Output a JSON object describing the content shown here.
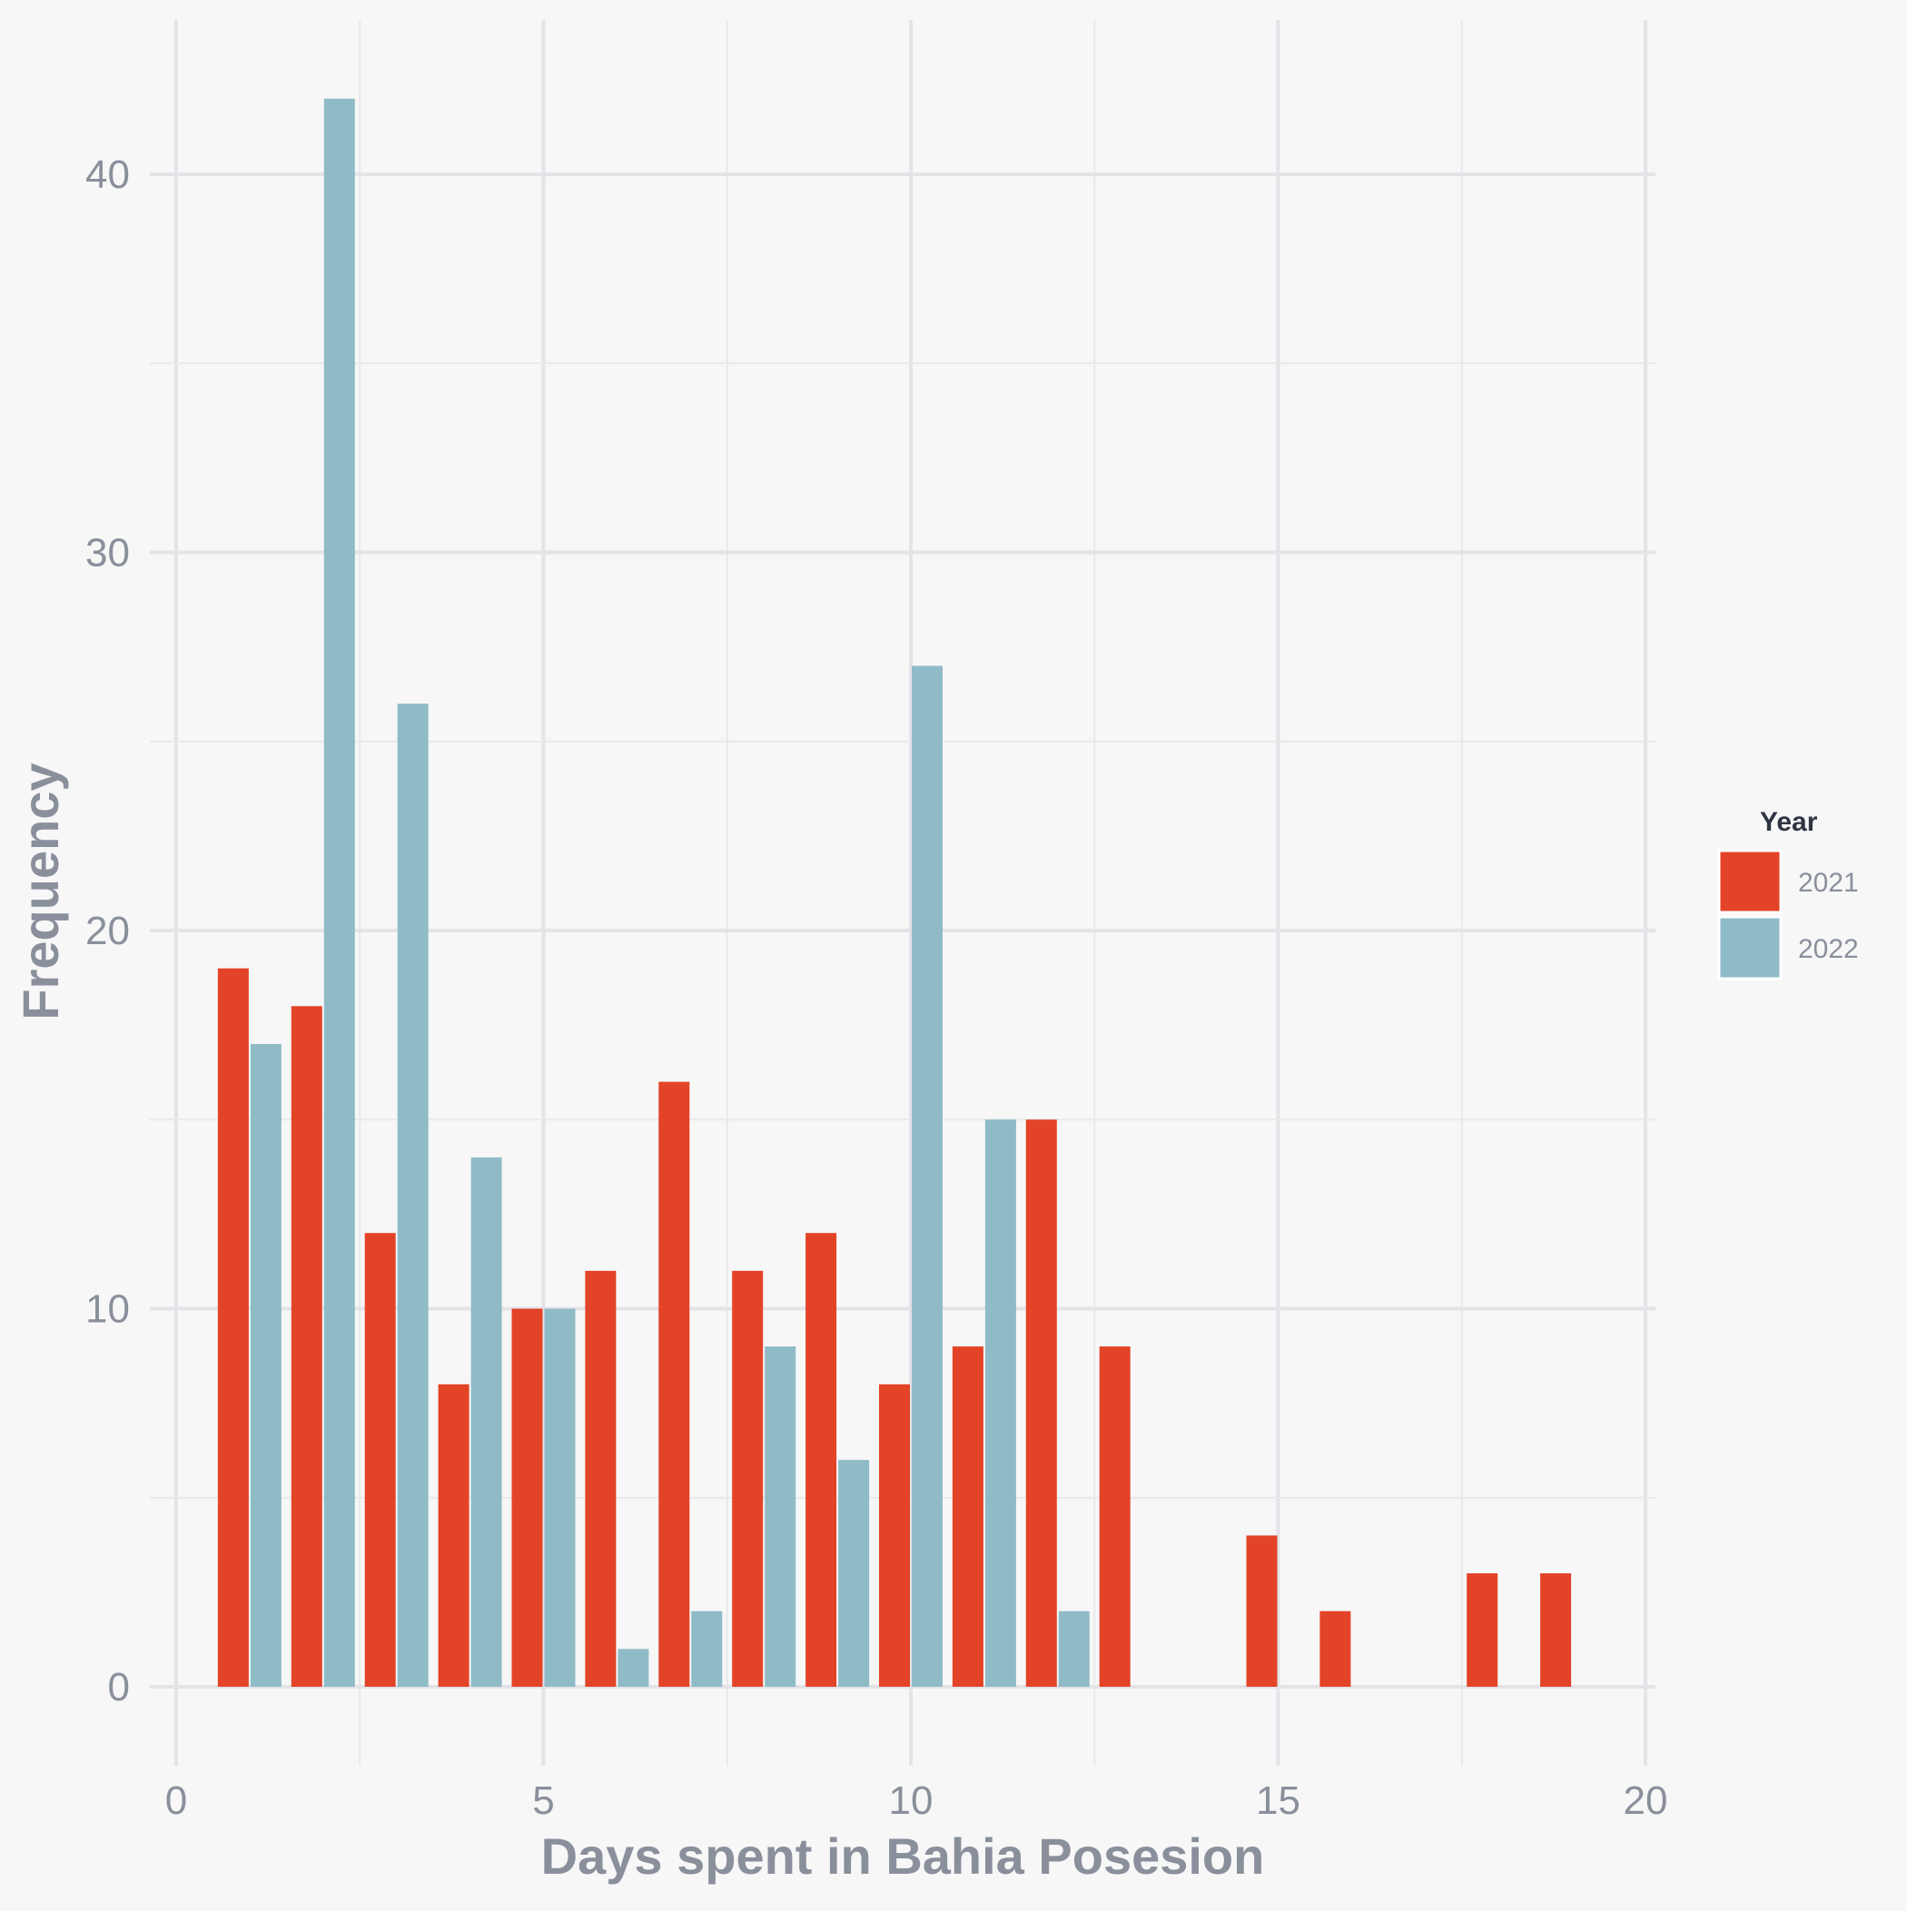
{
  "chart_data": {
    "type": "bar",
    "xlabel": "Days spent in Bahia Posesion",
    "ylabel": "Frequency",
    "xlim": [
      0,
      20
    ],
    "ylim": [
      0,
      42
    ],
    "x_ticks": [
      0,
      5,
      10,
      15,
      20
    ],
    "y_ticks": [
      0,
      10,
      20,
      30,
      40
    ],
    "grid": true,
    "legend_position": "right",
    "legend_title": "Year",
    "categories": [
      1,
      2,
      3,
      4,
      5,
      6,
      7,
      8,
      9,
      10,
      11,
      12,
      13,
      14,
      15,
      16,
      17,
      18,
      19
    ],
    "series": [
      {
        "name": "2021",
        "color": "#e34327",
        "values": [
          19,
          18,
          12,
          8,
          10,
          11,
          16,
          11,
          12,
          8,
          9,
          15,
          9,
          0,
          4,
          2,
          0,
          3,
          3
        ]
      },
      {
        "name": "2022",
        "color": "#8fbbc7",
        "values": [
          17,
          42,
          26,
          14,
          10,
          1,
          2,
          9,
          6,
          27,
          15,
          2,
          0,
          0,
          0,
          0,
          0,
          0,
          0
        ]
      }
    ]
  }
}
